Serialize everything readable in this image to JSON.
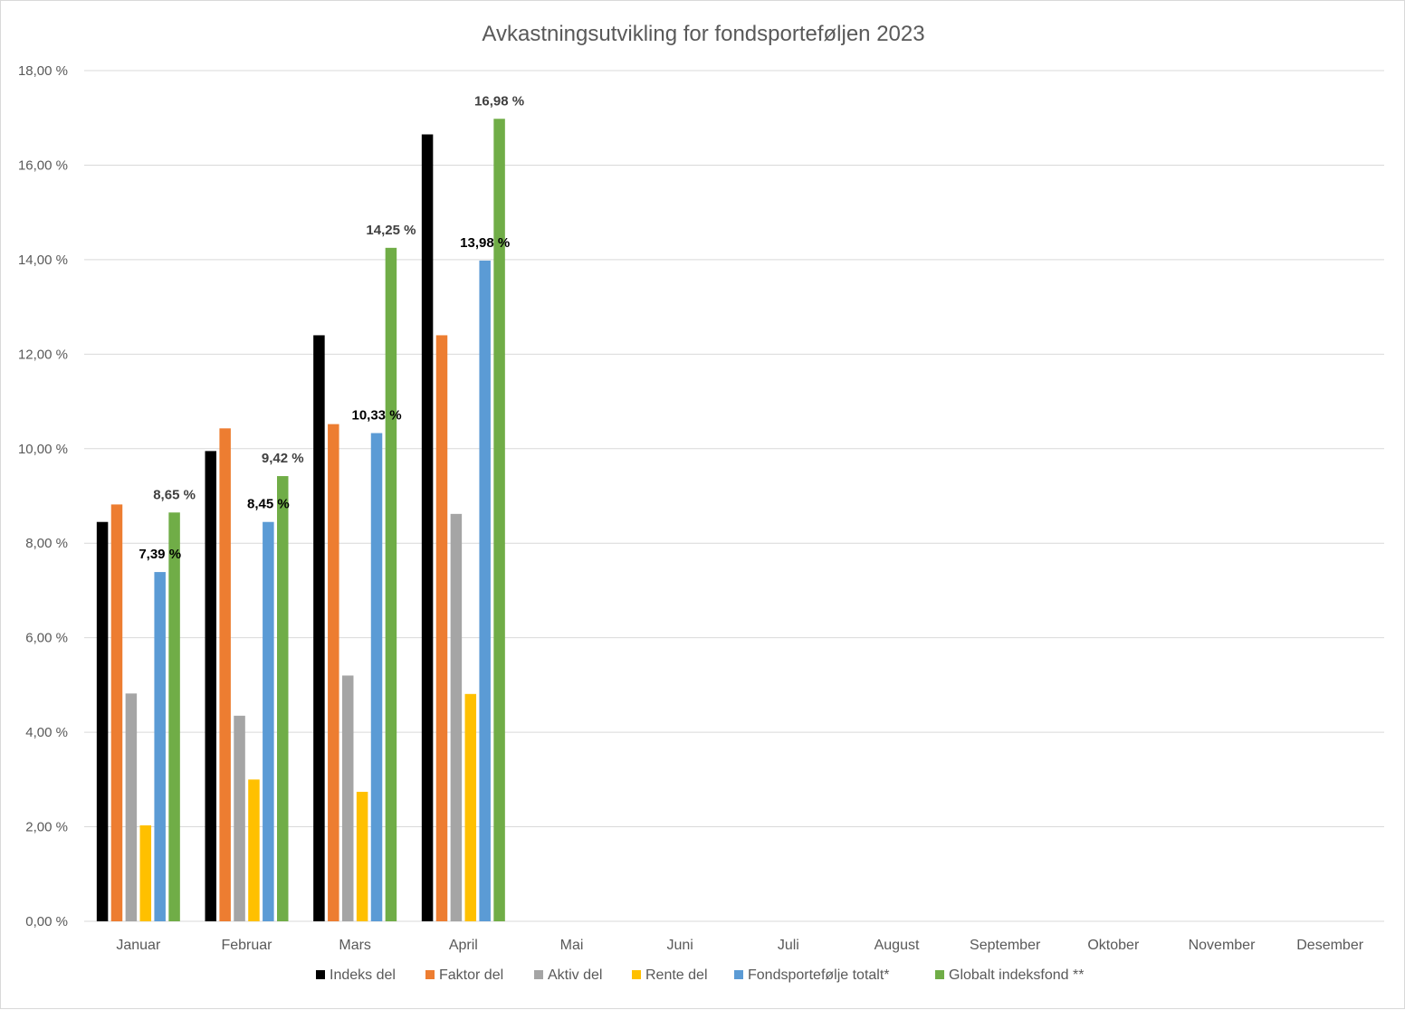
{
  "chart_data": {
    "type": "bar",
    "title": "Avkastningsutvikling for fondsporteføljen 2023",
    "categories": [
      "Januar",
      "Februar",
      "Mars",
      "April",
      "Mai",
      "Juni",
      "Juli",
      "August",
      "September",
      "Oktober",
      "November",
      "Desember"
    ],
    "ylim": [
      0,
      18
    ],
    "yticks": [
      0,
      2,
      4,
      6,
      8,
      10,
      12,
      14,
      16,
      18
    ],
    "ytick_labels": [
      "0,00 %",
      "2,00 %",
      "4,00 %",
      "6,00 %",
      "8,00 %",
      "10,00 %",
      "12,00 %",
      "14,00 %",
      "16,00 %",
      "18,00 %"
    ],
    "grid": true,
    "legend_position": "bottom",
    "series": [
      {
        "name": "Indeks del",
        "color": "#000000",
        "values": [
          8.45,
          9.95,
          12.4,
          16.65,
          null,
          null,
          null,
          null,
          null,
          null,
          null,
          null
        ]
      },
      {
        "name": "Faktor del",
        "color": "#ED7D31",
        "values": [
          8.82,
          10.43,
          10.52,
          12.4,
          null,
          null,
          null,
          null,
          null,
          null,
          null,
          null
        ]
      },
      {
        "name": "Aktiv del",
        "color": "#A5A5A5",
        "values": [
          4.82,
          4.35,
          5.2,
          8.62,
          null,
          null,
          null,
          null,
          null,
          null,
          null,
          null
        ]
      },
      {
        "name": "Rente del",
        "color": "#FFC000",
        "values": [
          2.03,
          3.0,
          2.74,
          4.81,
          null,
          null,
          null,
          null,
          null,
          null,
          null,
          null
        ]
      },
      {
        "name": "Fondsportefølje totalt*",
        "color": "#5B9BD5",
        "values": [
          7.39,
          8.45,
          10.33,
          13.98,
          null,
          null,
          null,
          null,
          null,
          null,
          null,
          null
        ],
        "data_labels": [
          "7,39 %",
          "8,45 %",
          "10,33 %",
          "13,98 %"
        ],
        "label_color": "#000000"
      },
      {
        "name": "Globalt indeksfond **",
        "color": "#70AD47",
        "values": [
          8.65,
          9.42,
          14.25,
          16.98,
          null,
          null,
          null,
          null,
          null,
          null,
          null,
          null
        ],
        "data_labels": [
          "8,65 %",
          "9,42 %",
          "14,25 %",
          "16,98 %"
        ],
        "label_color": "#404040"
      }
    ]
  }
}
